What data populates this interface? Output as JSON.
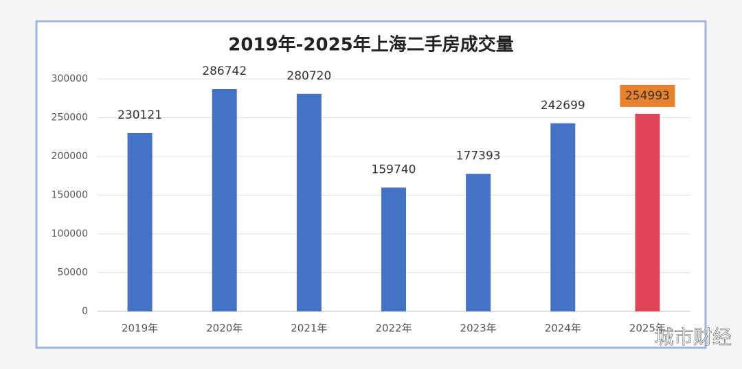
{
  "chart_data": {
    "type": "bar",
    "title": "2019年-2025年上海二手房成交量",
    "categories": [
      "2019年",
      "2020年",
      "2021年",
      "2022年",
      "2023年",
      "2024年",
      "2025年"
    ],
    "values": [
      230121,
      286742,
      280720,
      159740,
      177393,
      242699,
      254993
    ],
    "colors": [
      "#4472c4",
      "#4472c4",
      "#4472c4",
      "#4472c4",
      "#4472c4",
      "#4472c4",
      "#e0455a"
    ],
    "label_backgrounds": [
      null,
      null,
      null,
      null,
      null,
      null,
      "#e8822e"
    ],
    "ylim": [
      0,
      300000
    ],
    "yticks": [
      0,
      50000,
      100000,
      150000,
      200000,
      250000,
      300000
    ],
    "grid": true,
    "watermark": "城市财经"
  }
}
